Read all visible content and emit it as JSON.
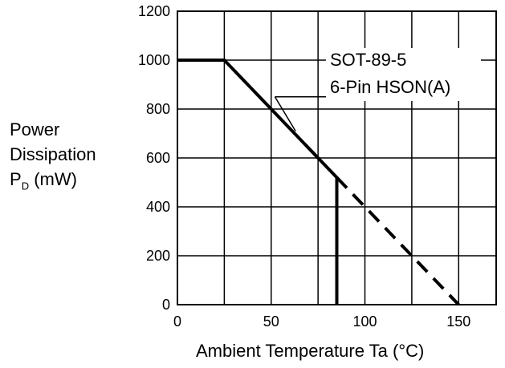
{
  "chart_data": {
    "type": "line",
    "xlabel": "Ambient Temperature Ta (°C)",
    "ylabel": [
      "Power",
      "Dissipation",
      "P",
      "D",
      "(mW)"
    ],
    "xlim": [
      0,
      170
    ],
    "ylim": [
      0,
      1200
    ],
    "x_ticks": [
      0,
      50,
      100,
      150
    ],
    "y_ticks": [
      0,
      200,
      400,
      600,
      800,
      1000,
      1200
    ],
    "grid": true,
    "series": [
      {
        "name": "SOT-89-5",
        "style": "solid",
        "points": [
          [
            0,
            1000
          ],
          [
            25,
            1000
          ],
          [
            85,
            520
          ],
          [
            85,
            0
          ]
        ]
      },
      {
        "name": "6-Pin HSON(A)",
        "style": "dashed",
        "points": [
          [
            85,
            520
          ],
          [
            150,
            0
          ]
        ]
      }
    ],
    "annotations": [
      "SOT-89-5",
      "6-Pin HSON(A)"
    ]
  }
}
